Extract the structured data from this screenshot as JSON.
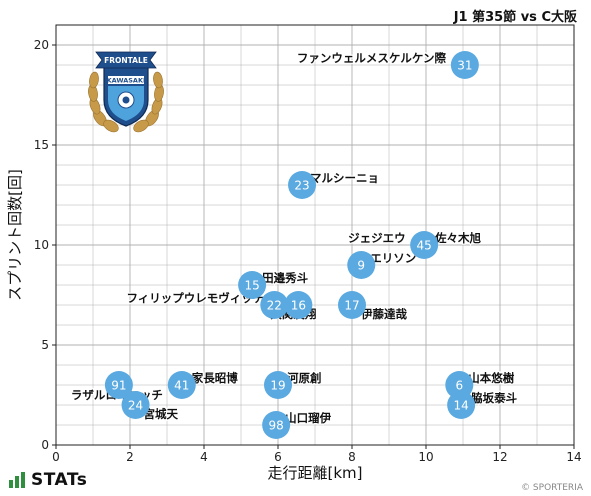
{
  "page": {
    "title": "J1 第35節 vs C大阪",
    "brand": "STATs",
    "copyright": "© SPORTERIA"
  },
  "colors": {
    "dot": "#5aa9e0",
    "grid": "#b0b0b0",
    "label": "#111111"
  },
  "logo": {
    "banner_text": "FRONTALE",
    "club_text": "KAWASAKI"
  },
  "chart_data": {
    "type": "scatter",
    "title": "J1 第35節 vs C大阪",
    "xlabel": "走行距離[km]",
    "ylabel": "スプリント回数[回]",
    "xlim": [
      0,
      14
    ],
    "ylim": [
      0,
      21
    ],
    "xticks": [
      0,
      2,
      4,
      6,
      8,
      10,
      12,
      14
    ],
    "yticks": [
      0,
      5,
      10,
      15,
      20
    ],
    "grid": true,
    "points": [
      {
        "number": "31",
        "name": "ファンウェルメスケルケン際",
        "x": 11.05,
        "y": 19.0
      },
      {
        "number": "23",
        "name": "マルシーニョ",
        "x": 6.65,
        "y": 13.0
      },
      {
        "number": "45",
        "name": "ジェジエウ",
        "x": 9.95,
        "y": 10.0
      },
      {
        "number": "45b",
        "name": "佐々木旭",
        "x": 10.0,
        "y": 10.0
      },
      {
        "number": "9",
        "name": "エリソン",
        "x": 8.25,
        "y": 9.0
      },
      {
        "number": "15",
        "name": "田邉秀斗",
        "x": 5.3,
        "y": 8.0
      },
      {
        "number": "22",
        "name": "フィリップウレモヴィッチ",
        "x": 5.9,
        "y": 7.0
      },
      {
        "number": "16",
        "name": "大関友翔",
        "x": 6.55,
        "y": 7.0
      },
      {
        "number": "17",
        "name": "伊藤達哉",
        "x": 8.0,
        "y": 7.0
      },
      {
        "number": "91",
        "name": "ラザルロマニッチ",
        "x": 1.7,
        "y": 3.0
      },
      {
        "number": "41",
        "name": "家長昭博",
        "x": 3.4,
        "y": 3.0
      },
      {
        "number": "19",
        "name": "河原創",
        "x": 6.0,
        "y": 3.0
      },
      {
        "number": "6",
        "name": "山本悠樹",
        "x": 10.9,
        "y": 3.0
      },
      {
        "number": "24",
        "name": "宮城天",
        "x": 2.15,
        "y": 2.0
      },
      {
        "number": "14",
        "name": "脇坂泰斗",
        "x": 10.95,
        "y": 2.0
      },
      {
        "number": "98",
        "name": "山口瑠伊",
        "x": 5.95,
        "y": 1.0
      }
    ]
  }
}
